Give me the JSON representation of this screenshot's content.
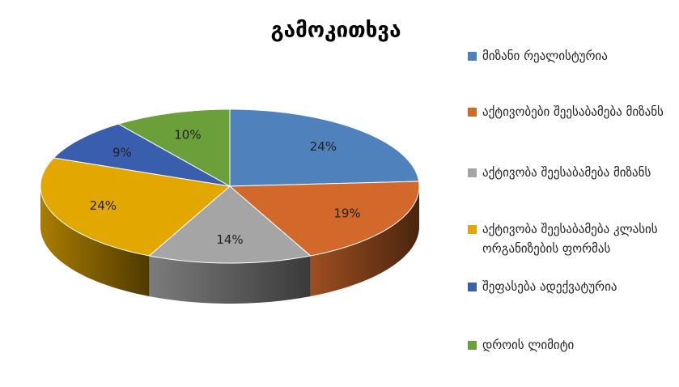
{
  "chart_data": {
    "type": "pie",
    "title": "გამოკითხვა",
    "categories": [
      "მიზანი რეალისტურია",
      "აქტივობები შეესაბამება მიზანს",
      "აქტივობა შეესაბამება მიზანს",
      "აქტივობა შეესაბამება კლასის ორგანიზების ფორმას",
      "შეფასება ადექვატურია",
      "დროის ლიმიტი"
    ],
    "values": [
      24,
      19,
      14,
      24,
      9,
      10
    ],
    "value_labels": [
      "24%",
      "19%",
      "14%",
      "24%",
      "9%",
      "10%"
    ],
    "colors": [
      "#4f81bd",
      "#d2692b",
      "#a5a5a5",
      "#e2a700",
      "#3a5eae",
      "#6a9f3a"
    ]
  }
}
